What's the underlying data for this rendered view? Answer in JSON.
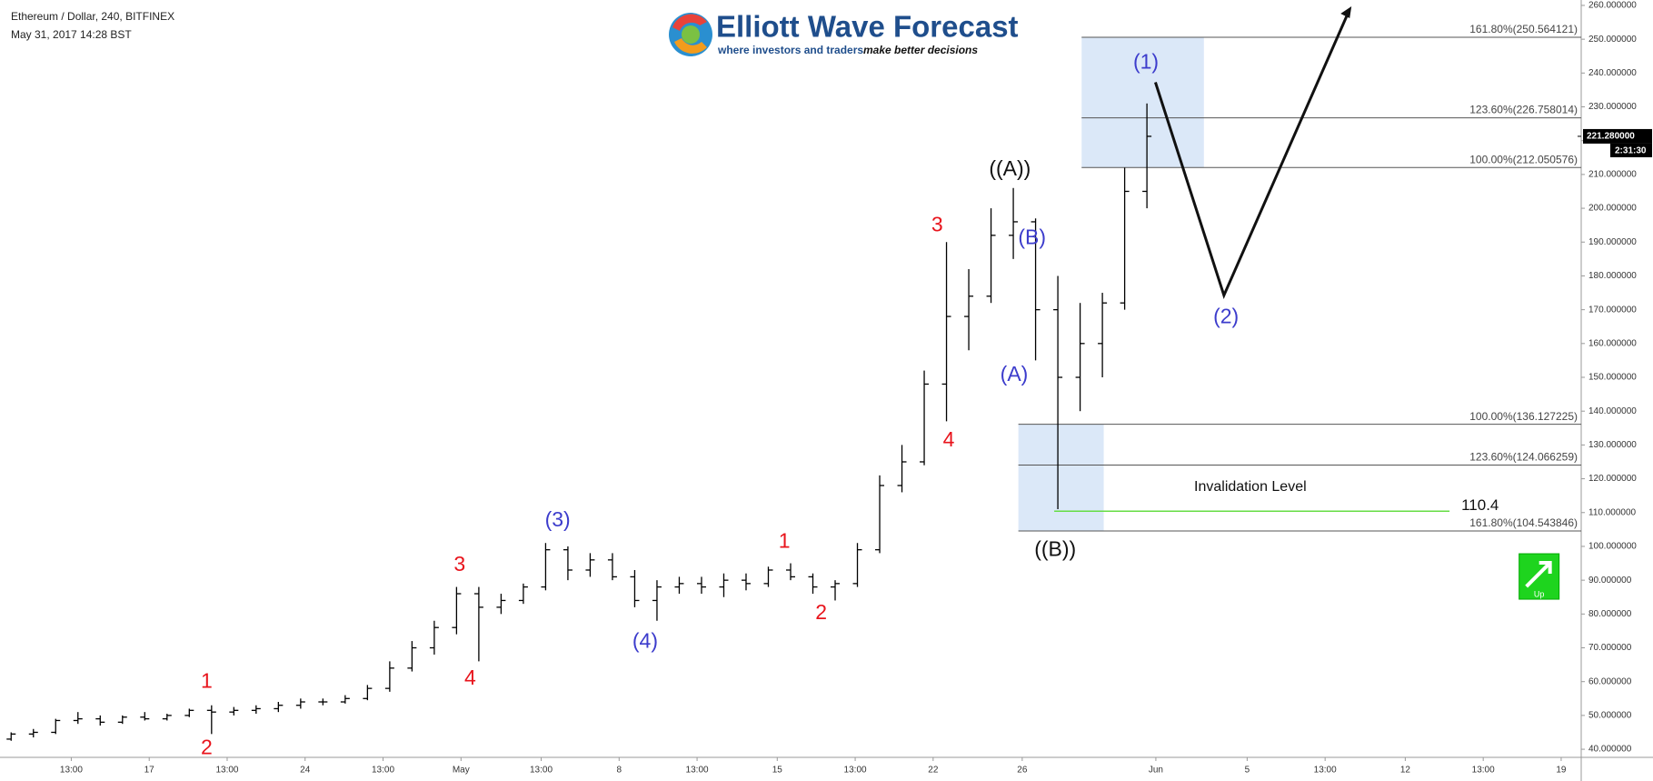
{
  "chart_data": {
    "type": "ohlc",
    "title": "Ethereum / Dollar, 240, BITFINEX",
    "subtitle": "May 31, 2017 14:28 BST",
    "logo": {
      "name": "Elliott Wave Forecast",
      "tagline": "where investors and traders",
      "tagline_bold": "make better decisions"
    },
    "color": "#000000",
    "open": [
      43,
      44.5,
      45,
      48.5,
      49,
      48,
      49.5,
      49,
      50,
      51.5,
      51,
      51.5,
      52,
      53,
      54,
      54,
      55,
      58,
      64,
      70,
      76,
      86,
      82,
      84,
      88,
      99,
      93,
      96,
      91,
      84,
      88,
      89,
      88,
      90,
      89,
      93,
      91,
      88,
      89,
      99,
      118,
      125,
      148,
      168,
      174,
      192,
      196,
      170,
      150,
      160,
      172,
      205
    ],
    "high": [
      45,
      46,
      49,
      51,
      50,
      50,
      51,
      50.5,
      52,
      53,
      52.5,
      53,
      54,
      55,
      55,
      56,
      59,
      66,
      72,
      78,
      88,
      88,
      86,
      89,
      101,
      100,
      98,
      98,
      93,
      90,
      91,
      91,
      92,
      92,
      94,
      95,
      92,
      90,
      101,
      121,
      130,
      152,
      190,
      182,
      200,
      206,
      197,
      180,
      172,
      175,
      212,
      231
    ],
    "low": [
      42.5,
      43.5,
      44.5,
      47.5,
      47,
      47.5,
      48.5,
      48.5,
      49.5,
      44.5,
      50,
      50.5,
      51,
      52,
      53,
      53.5,
      54.5,
      57,
      63,
      68,
      74,
      66,
      80,
      83,
      87,
      90,
      91,
      90,
      82,
      78,
      86,
      86,
      85,
      87,
      88,
      90,
      86,
      84,
      88,
      98,
      116,
      124,
      137,
      158,
      172,
      185,
      155,
      111,
      140,
      150,
      170,
      200
    ],
    "close": [
      44.5,
      45,
      48.5,
      49,
      48,
      49.5,
      49,
      50,
      51.5,
      51,
      51.5,
      52,
      53,
      54,
      54,
      55,
      58,
      64,
      70,
      76,
      86,
      82,
      84,
      88,
      99,
      93,
      96,
      91,
      84,
      88,
      89,
      88,
      90,
      89,
      93,
      91,
      88,
      89,
      99,
      118,
      125,
      148,
      168,
      174,
      192,
      196,
      170,
      150,
      160,
      172,
      205,
      221.28
    ],
    "xlim": [
      0,
      71
    ],
    "xticks": [
      {
        "value": 3.2,
        "label": "13:00"
      },
      {
        "value": 6.7,
        "label": "17"
      },
      {
        "value": 10.2,
        "label": "13:00"
      },
      {
        "value": 13.7,
        "label": "24"
      },
      {
        "value": 17.2,
        "label": "13:00"
      },
      {
        "value": 20.7,
        "label": "May"
      },
      {
        "value": 24.3,
        "label": "13:00"
      },
      {
        "value": 27.8,
        "label": "8"
      },
      {
        "value": 31.3,
        "label": "13:00"
      },
      {
        "value": 34.9,
        "label": "15"
      },
      {
        "value": 38.4,
        "label": "13:00"
      },
      {
        "value": 41.9,
        "label": "22"
      },
      {
        "value": 45.9,
        "label": "26"
      },
      {
        "value": 51.9,
        "label": "Jun"
      },
      {
        "value": 56,
        "label": "5"
      },
      {
        "value": 59.5,
        "label": "13:00"
      },
      {
        "value": 63.1,
        "label": "12"
      },
      {
        "value": 66.6,
        "label": "13:00"
      },
      {
        "value": 70.1,
        "label": "19"
      }
    ],
    "ylim": [
      37.6,
      261.6
    ],
    "yticks": [
      {
        "value": 40,
        "label": "40.000000"
      },
      {
        "value": 50,
        "label": "50.000000"
      },
      {
        "value": 60,
        "label": "60.000000"
      },
      {
        "value": 70,
        "label": "70.000000"
      },
      {
        "value": 80,
        "label": "80.000000"
      },
      {
        "value": 90,
        "label": "90.000000"
      },
      {
        "value": 100,
        "label": "100.000000"
      },
      {
        "value": 110,
        "label": "110.000000"
      },
      {
        "value": 120,
        "label": "120.000000"
      },
      {
        "value": 130,
        "label": "130.000000"
      },
      {
        "value": 140,
        "label": "140.000000"
      },
      {
        "value": 150,
        "label": "150.000000"
      },
      {
        "value": 160,
        "label": "160.000000"
      },
      {
        "value": 170,
        "label": "170.000000"
      },
      {
        "value": 180,
        "label": "180.000000"
      },
      {
        "value": 190,
        "label": "190.000000"
      },
      {
        "value": 200,
        "label": "200.000000"
      },
      {
        "value": 210,
        "label": "210.000000"
      },
      {
        "value": 220,
        "label": "220.000000"
      },
      {
        "value": 230,
        "label": "230.000000"
      },
      {
        "value": 240,
        "label": "240.000000"
      },
      {
        "value": 250,
        "label": "250.000000"
      },
      {
        "value": 260,
        "label": "260.000000"
      }
    ],
    "last_price": {
      "value": 221.28,
      "label": "221.280000"
    },
    "countdown": "2:31:30",
    "fib_upper": [
      {
        "value": 250.564121,
        "label": "161.80%(250.564121)"
      },
      {
        "value": 226.758014,
        "label": "123.60%(226.758014)"
      },
      {
        "value": 212.050576,
        "label": "100.00%(212.050576)"
      }
    ],
    "fib_lower": [
      {
        "value": 136.127225,
        "label": "100.00%(136.127225)"
      },
      {
        "value": 124.066259,
        "label": "123.60%(124.066259)"
      },
      {
        "value": 104.543846,
        "label": "161.80%(104.543846)"
      }
    ],
    "invalidation": {
      "text": "Invalidation Level",
      "value": 110.4,
      "label": "110.4",
      "color": "#66dd44"
    },
    "box_color": "#dbe8f8",
    "annotations": [
      {
        "text": "1",
        "color": "#e8141c"
      },
      {
        "text": "2",
        "color": "#e8141c"
      },
      {
        "text": "3",
        "color": "#e8141c"
      },
      {
        "text": "4",
        "color": "#e8141c"
      },
      {
        "text": "(3)",
        "color": "#3c3ccc"
      },
      {
        "text": "(4)",
        "color": "#3c3ccc"
      },
      {
        "text": "1",
        "color": "#e8141c"
      },
      {
        "text": "2",
        "color": "#e8141c"
      },
      {
        "text": "3",
        "color": "#e8141c"
      },
      {
        "text": "4",
        "color": "#e8141c"
      },
      {
        "text": "((A))",
        "color": "#111111"
      },
      {
        "text": "(B)",
        "color": "#3c3ccc"
      },
      {
        "text": "(A)",
        "color": "#3c3ccc"
      },
      {
        "text": "((B))",
        "color": "#111111"
      },
      {
        "text": "(1)",
        "color": "#3c3ccc"
      },
      {
        "text": "(2)",
        "color": "#3c3ccc"
      }
    ],
    "up_badge": "Up"
  }
}
